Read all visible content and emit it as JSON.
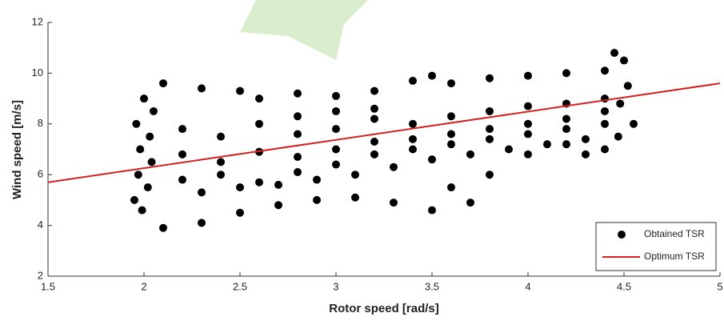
{
  "chart_data": {
    "type": "scatter",
    "x_label": "Rotor speed [rad/s]",
    "y_label": "Wind speed [m/s]",
    "xlim": [
      1.5,
      5
    ],
    "ylim": [
      2,
      12
    ],
    "xticks": [
      1.5,
      2,
      2.5,
      3,
      3.5,
      4,
      4.5,
      5
    ],
    "yticks": [
      2,
      4,
      6,
      8,
      10,
      12
    ],
    "legend": "lower right",
    "series": [
      {
        "name": "Obtained TSR",
        "type": "scatter",
        "color": "#000000",
        "x": [
          1.95,
          1.97,
          1.98,
          1.96,
          2.0,
          2.02,
          2.03,
          2.05,
          1.99,
          2.04,
          2.1,
          2.3,
          2.5,
          2.1,
          2.3,
          2.5,
          2.7,
          2.9,
          3.1,
          3.3,
          3.5,
          3.7,
          2.2,
          2.4,
          2.6,
          2.8,
          3.0,
          3.2,
          3.4,
          3.6,
          3.8,
          4.0,
          4.2,
          4.4,
          2.2,
          2.4,
          2.6,
          2.8,
          3.0,
          3.2,
          3.4,
          3.6,
          3.8,
          4.0,
          4.2,
          4.4,
          2.2,
          2.4,
          2.6,
          2.8,
          3.0,
          3.2,
          3.4,
          3.6,
          3.8,
          4.0,
          4.2,
          4.4,
          2.3,
          2.5,
          2.7,
          2.9,
          3.1,
          3.3,
          3.5,
          3.7,
          3.9,
          4.1,
          4.3,
          2.6,
          2.8,
          3.0,
          3.2,
          3.4,
          3.6,
          3.8,
          4.0,
          4.2,
          4.4,
          4.45,
          4.5,
          4.52,
          4.48,
          4.55,
          4.47,
          4.4,
          4.3,
          3.5,
          3.0,
          3.2,
          2.8,
          3.6,
          3.8,
          4.0,
          4.2
        ],
        "values": [
          5.0,
          6.0,
          7.0,
          8.0,
          9.0,
          5.5,
          7.5,
          8.5,
          4.6,
          6.5,
          9.6,
          9.4,
          9.3,
          3.9,
          4.1,
          4.5,
          4.8,
          5.0,
          5.1,
          4.9,
          4.6,
          4.9,
          7.8,
          7.5,
          8.0,
          7.6,
          7.8,
          8.2,
          8.0,
          8.3,
          8.5,
          8.7,
          8.8,
          9.0,
          6.8,
          6.5,
          6.9,
          6.7,
          7.0,
          7.3,
          7.4,
          7.6,
          7.8,
          8.0,
          8.2,
          8.5,
          5.8,
          6.0,
          5.7,
          6.1,
          6.4,
          6.8,
          7.0,
          7.2,
          7.4,
          7.6,
          7.8,
          8.0,
          5.3,
          5.5,
          5.6,
          5.8,
          6.0,
          6.3,
          6.6,
          6.8,
          7.0,
          7.2,
          7.4,
          9.0,
          9.2,
          9.1,
          9.3,
          9.7,
          9.6,
          9.8,
          9.9,
          10.0,
          10.1,
          10.8,
          10.5,
          9.5,
          8.8,
          8.0,
          7.5,
          7.0,
          6.8,
          9.9,
          8.5,
          8.6,
          8.3,
          5.5,
          6.0,
          6.8,
          7.2
        ]
      },
      {
        "name": "Optimum TSR",
        "type": "line",
        "color": "#d42020",
        "x": [
          1.5,
          5
        ],
        "values": [
          5.7,
          9.6
        ]
      }
    ]
  }
}
